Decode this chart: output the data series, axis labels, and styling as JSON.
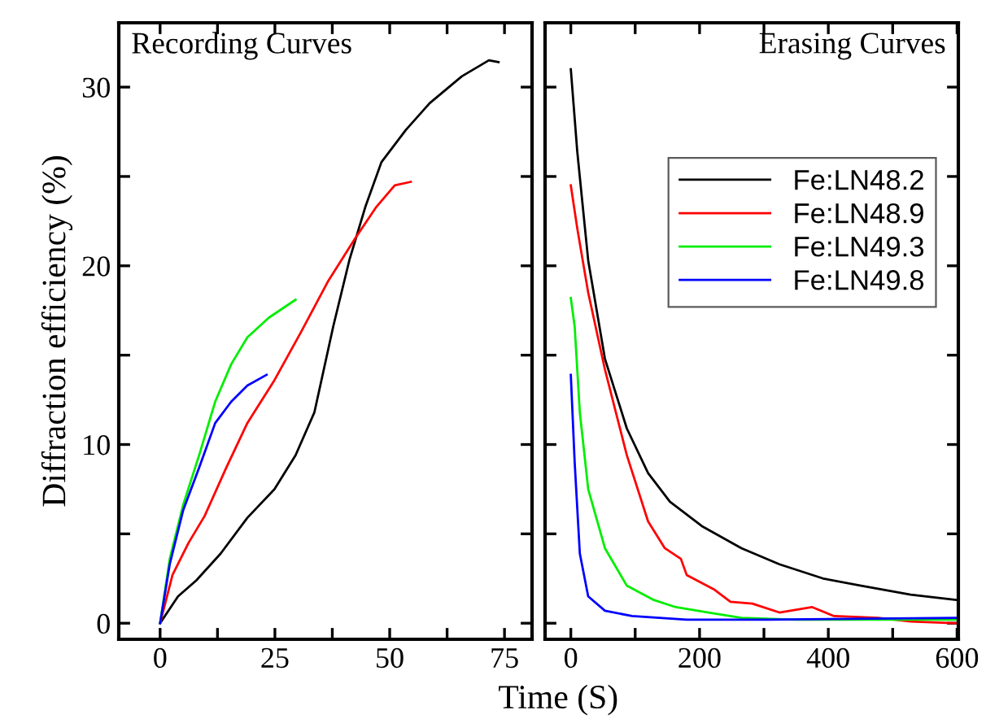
{
  "chart_data": [
    {
      "type": "line",
      "title": "Recording Curves",
      "ylabel": "Diffraction efficiency (%)",
      "xlim": [
        -9,
        81
      ],
      "ylim": [
        -0.9,
        33.6
      ],
      "xticks": [
        0,
        {
          "value": 12.5,
          "label": null
        },
        25,
        {
          "value": 37.5,
          "label": null
        },
        50,
        {
          "value": 62.5,
          "label": null
        },
        75
      ],
      "yticks": [
        0,
        {
          "value": 5,
          "label": null
        },
        10,
        {
          "value": 15,
          "label": null
        },
        20,
        {
          "value": 25,
          "label": null
        },
        30
      ],
      "grid": false,
      "legend": false,
      "marker": "none",
      "line_style": "solid",
      "series": [
        {
          "color": "#000000",
          "x": [
            0,
            3.9,
            7.9,
            13.2,
            19,
            24.9,
            29.5,
            33.6,
            37.7,
            41.2,
            44.7,
            48.2,
            53.5,
            58.7,
            65.7,
            71.6,
            73.7
          ],
          "values": [
            0,
            1.5,
            2.4,
            3.9,
            5.9,
            7.5,
            9.4,
            11.8,
            16.6,
            20.3,
            23.3,
            25.8,
            27.6,
            29.1,
            30.6,
            31.5,
            31.4
          ]
        },
        {
          "color": "#ff0000",
          "x": [
            0,
            2.7,
            6.2,
            9.7,
            14.4,
            19,
            24.9,
            30.7,
            36.5,
            42.4,
            47.1,
            51.1,
            54.6
          ],
          "values": [
            0,
            2.7,
            4.5,
            6.0,
            8.7,
            11.2,
            13.6,
            16.3,
            19.1,
            21.5,
            23.3,
            24.5,
            24.7
          ]
        },
        {
          "color": "#00ee00",
          "x": [
            0,
            2.1,
            5.0,
            8.5,
            12,
            15.5,
            19,
            23.7,
            29.5
          ],
          "values": [
            0,
            3.6,
            6.6,
            9.4,
            12.4,
            14.5,
            16.0,
            17.1,
            18.1
          ]
        },
        {
          "color": "#0000ff",
          "x": [
            0,
            2.1,
            5.0,
            8.5,
            12,
            15.5,
            19,
            23.2
          ],
          "values": [
            0,
            3.3,
            6.3,
            8.7,
            11.2,
            12.4,
            13.3,
            13.9
          ]
        }
      ]
    },
    {
      "type": "line",
      "title": "Erasing Curves",
      "xlabel": "Time (S)",
      "xlim": [
        -40,
        602
      ],
      "ylim": [
        -0.9,
        33.6
      ],
      "tick_labels": "x",
      "xticks": [
        0,
        {
          "value": 100,
          "label": null
        },
        200,
        {
          "value": 300,
          "label": null
        },
        400,
        {
          "value": 500,
          "label": null
        },
        600
      ],
      "yticks": [
        0,
        {
          "value": 5,
          "label": null
        },
        10,
        {
          "value": 15,
          "label": null
        },
        20,
        {
          "value": 25,
          "label": null
        },
        30
      ],
      "grid": false,
      "legend": "right",
      "marker": "none",
      "line_style": "solid",
      "series": [
        {
          "name": "Fe:LN48.2",
          "color": "#000000",
          "x": [
            0,
            10,
            27,
            53,
            87,
            120,
            154,
            205,
            265,
            324,
            392,
            451,
            528,
            600
          ],
          "values": [
            31.0,
            26.4,
            20.3,
            14.8,
            10.9,
            8.4,
            6.8,
            5.4,
            4.2,
            3.3,
            2.5,
            2.1,
            1.6,
            1.3
          ]
        },
        {
          "name": "Fe:LN48.9",
          "color": "#ff0000",
          "x": [
            0,
            10,
            27,
            53,
            87,
            120,
            146,
            171,
            180,
            222,
            248,
            282,
            324,
            375,
            409,
            477,
            528,
            600
          ],
          "values": [
            24.5,
            22.1,
            18.5,
            14.2,
            9.4,
            5.7,
            4.2,
            3.6,
            2.7,
            1.9,
            1.2,
            1.1,
            0.6,
            0.9,
            0.4,
            0.3,
            0.1,
            0.0
          ]
        },
        {
          "name": "Fe:LN49.3",
          "color": "#00ee00",
          "x": [
            0,
            6,
            14,
            27,
            53,
            87,
            129,
            163,
            214,
            265,
            349,
            477,
            600
          ],
          "values": [
            18.2,
            16.6,
            11.8,
            7.5,
            4.2,
            2.1,
            1.3,
            0.9,
            0.6,
            0.3,
            0.2,
            0.2,
            0.2
          ]
        },
        {
          "name": "Fe:LN49.8",
          "color": "#0000ff",
          "x": [
            0,
            6,
            14,
            27,
            53,
            95,
            180,
            307,
            600
          ],
          "values": [
            13.9,
            9.0,
            3.9,
            1.5,
            0.7,
            0.4,
            0.2,
            0.2,
            0.3
          ]
        }
      ]
    }
  ]
}
